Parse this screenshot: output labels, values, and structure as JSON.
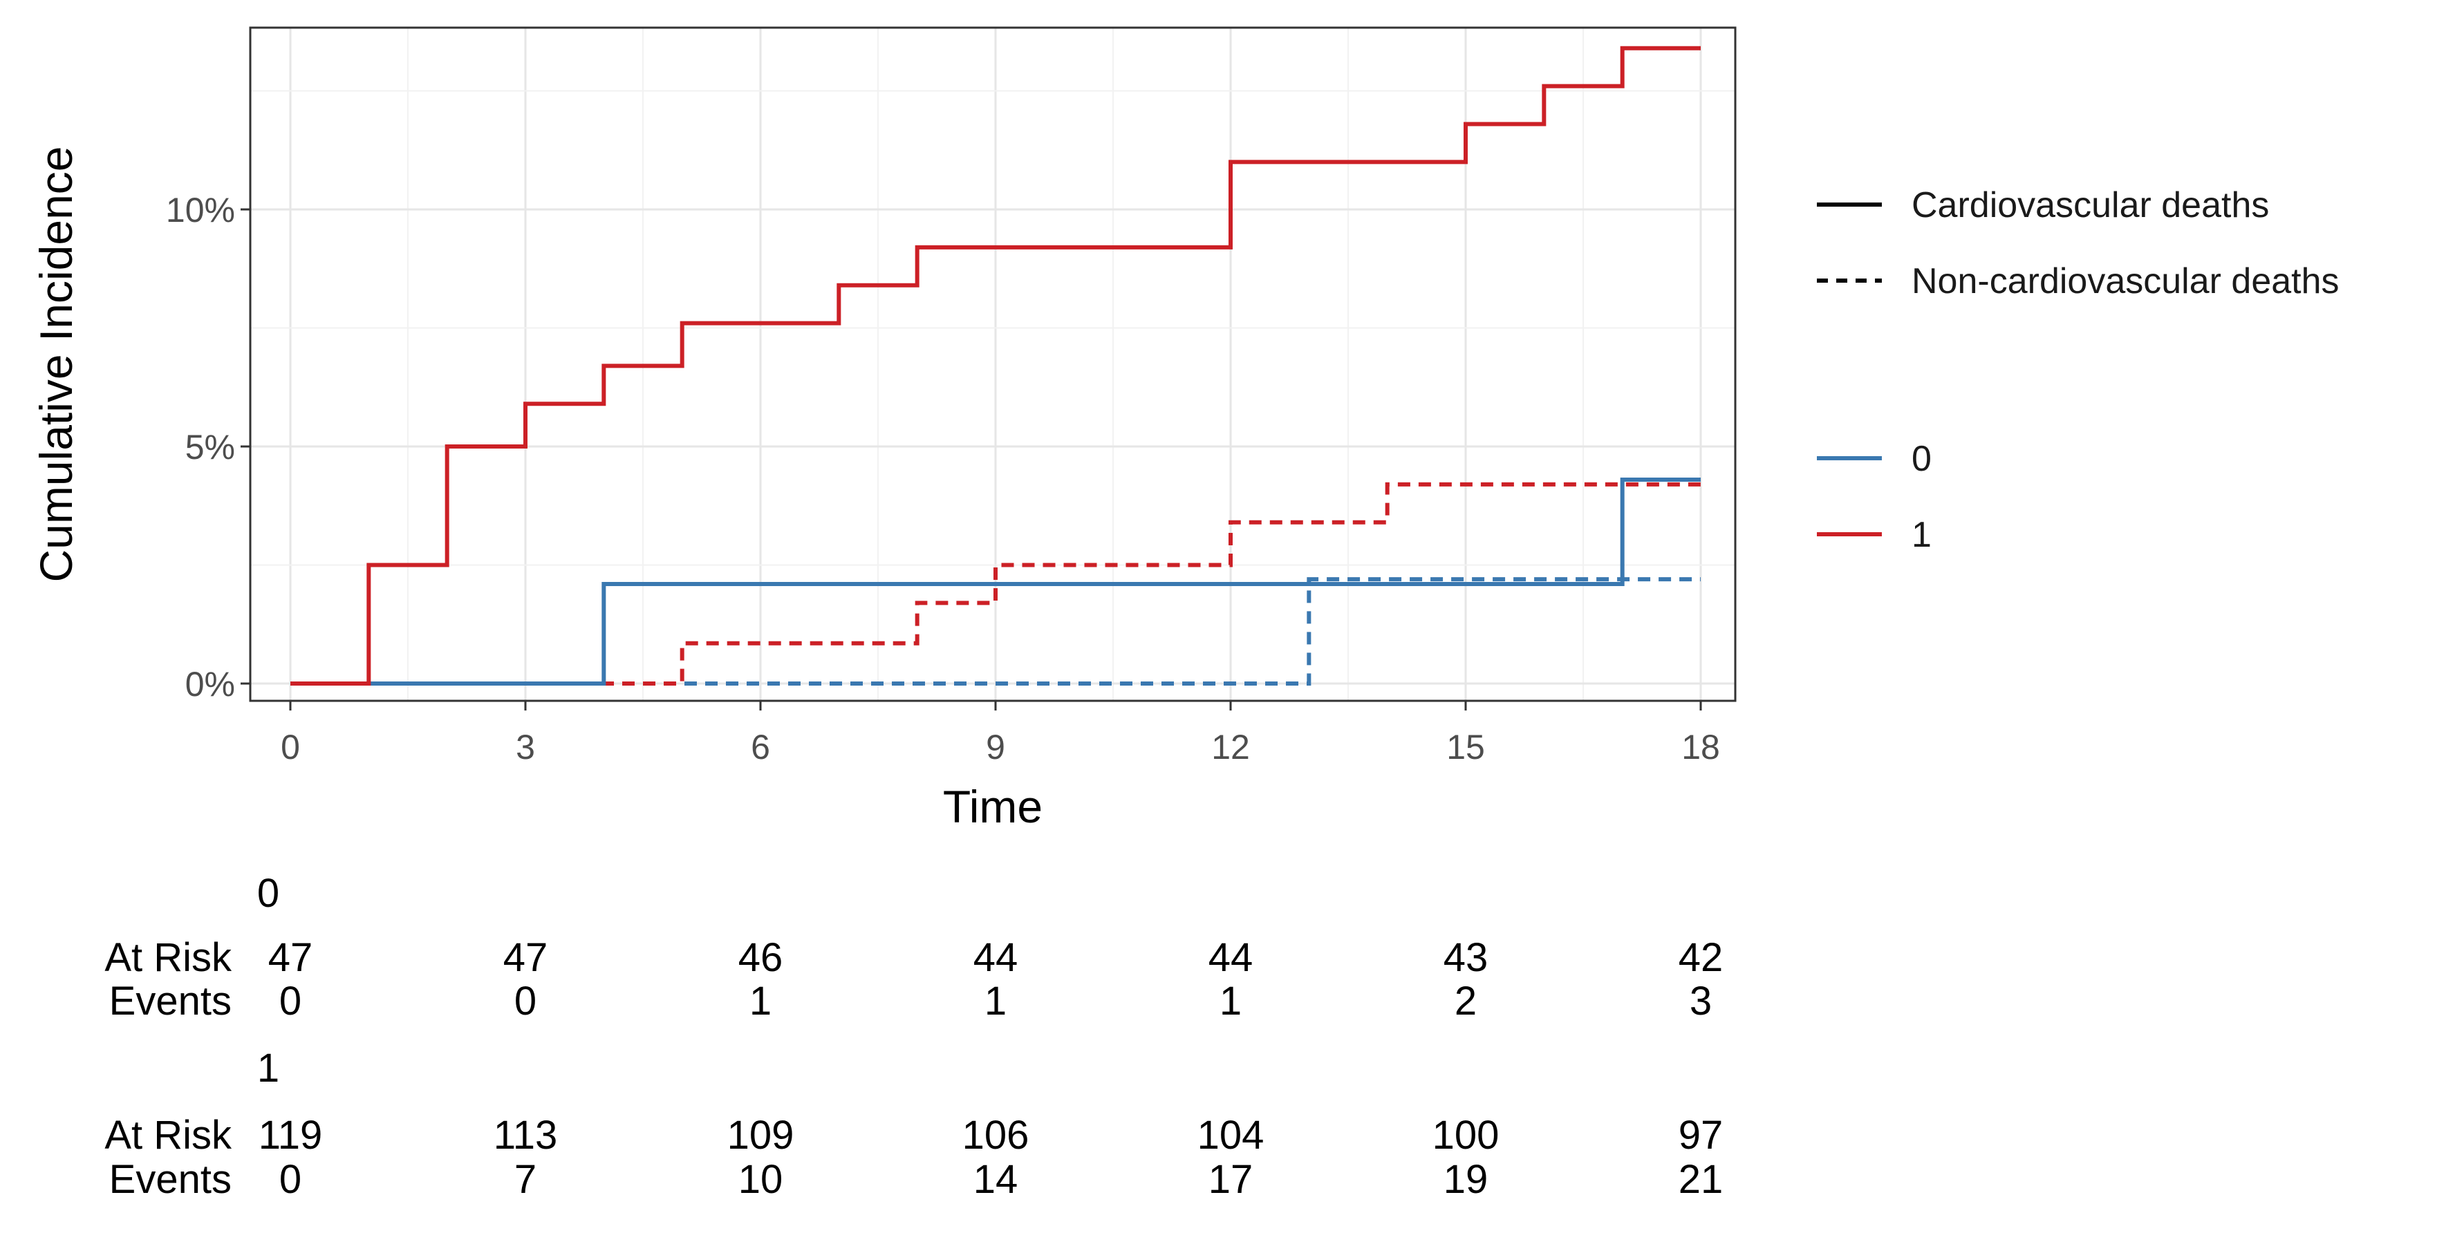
{
  "chart_data": {
    "type": "line",
    "subtype": "step",
    "title": "",
    "xlabel": "Time",
    "ylabel": "Cumulative Incidence",
    "xlim": [
      0,
      18
    ],
    "ylim": [
      0,
      14
    ],
    "x_ticks": [
      0,
      3,
      6,
      9,
      12,
      15,
      18
    ],
    "x_tick_labels": [
      "0",
      "3",
      "6",
      "9",
      "12",
      "15",
      "18"
    ],
    "y_ticks": [
      0,
      5,
      10
    ],
    "y_tick_labels": [
      "0%",
      "5%",
      "10%"
    ],
    "y_unit": "percent",
    "grid": true,
    "legend_position": "right",
    "legend_linetype_entries": [
      {
        "label": "Cardiovascular deaths",
        "linetype": "solid"
      },
      {
        "label": "Non-cardiovascular deaths",
        "linetype": "dashed"
      }
    ],
    "legend_group_entries": [
      {
        "label": "0",
        "color": "#3A78B0"
      },
      {
        "label": "1",
        "color": "#CC2026"
      }
    ],
    "series": [
      {
        "group": "1",
        "type": "Cardiovascular deaths",
        "linetype": "solid",
        "color": "#CC2026",
        "x": [
          0,
          1,
          2,
          3,
          4,
          5,
          7,
          8,
          12,
          15,
          16,
          17,
          18
        ],
        "y": [
          0,
          2.5,
          5.0,
          5.9,
          6.7,
          7.6,
          8.4,
          9.2,
          11.0,
          11.8,
          12.6,
          13.4,
          13.4
        ]
      },
      {
        "group": "0",
        "type": "Cardiovascular deaths",
        "linetype": "solid",
        "color": "#3A78B0",
        "x": [
          0,
          4,
          17,
          18
        ],
        "y": [
          0,
          2.1,
          4.3,
          4.3
        ]
      },
      {
        "group": "1",
        "type": "Non-cardiovascular deaths",
        "linetype": "dashed",
        "color": "#CC2026",
        "x": [
          0,
          5,
          8,
          9,
          12,
          14,
          18
        ],
        "y": [
          0,
          0.85,
          1.7,
          2.5,
          3.4,
          4.2,
          4.2
        ]
      },
      {
        "group": "0",
        "type": "Non-cardiovascular deaths",
        "linetype": "dashed",
        "color": "#3A78B0",
        "x": [
          0,
          13,
          18
        ],
        "y": [
          0,
          2.2,
          2.2
        ]
      }
    ],
    "risk_table": {
      "times": [
        0,
        3,
        6,
        9,
        12,
        15,
        18
      ],
      "row_labels": {
        "at_risk": "At Risk",
        "events": "Events"
      },
      "groups": [
        {
          "name": "0",
          "at_risk": [
            "47",
            "47",
            "46",
            "44",
            "44",
            "43",
            "42"
          ],
          "events": [
            "0",
            "0",
            "1",
            "1",
            "1",
            "2",
            "3"
          ]
        },
        {
          "name": "1",
          "at_risk": [
            "119",
            "113",
            "109",
            "106",
            "104",
            "100",
            "97"
          ],
          "events": [
            "0",
            "7",
            "10",
            "14",
            "17",
            "19",
            "21"
          ]
        }
      ]
    }
  }
}
